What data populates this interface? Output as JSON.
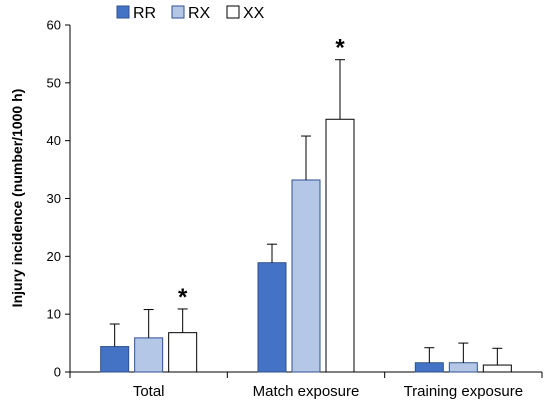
{
  "chart_data": {
    "type": "bar",
    "categories": [
      "Total",
      "Match exposure",
      "Training exposure"
    ],
    "series": [
      {
        "name": "RR",
        "values": [
          4.4,
          18.9,
          1.6
        ],
        "errors": [
          3.9,
          3.2,
          2.6
        ],
        "color": "#4472c4",
        "stroke": "#2f528f"
      },
      {
        "name": "RX",
        "values": [
          5.9,
          33.2,
          1.6
        ],
        "errors": [
          4.9,
          7.6,
          3.4
        ],
        "color": "#b4c7e7",
        "stroke": "#2f528f"
      },
      {
        "name": "XX",
        "values": [
          6.8,
          43.7,
          1.2
        ],
        "errors": [
          4.1,
          10.3,
          2.9
        ],
        "color": "#ffffff",
        "stroke": "#000000"
      }
    ],
    "significance": [
      {
        "category_index": 0,
        "series_index": 2,
        "symbol": "*"
      },
      {
        "category_index": 1,
        "series_index": 2,
        "symbol": "*"
      }
    ],
    "ylabel": "Injury incidence (number/1000 h)",
    "xlabel": "",
    "ylim": [
      0,
      60
    ],
    "yticks": [
      0,
      10,
      20,
      30,
      40,
      50,
      60
    ],
    "legend_position": "top-left",
    "grid": false
  }
}
